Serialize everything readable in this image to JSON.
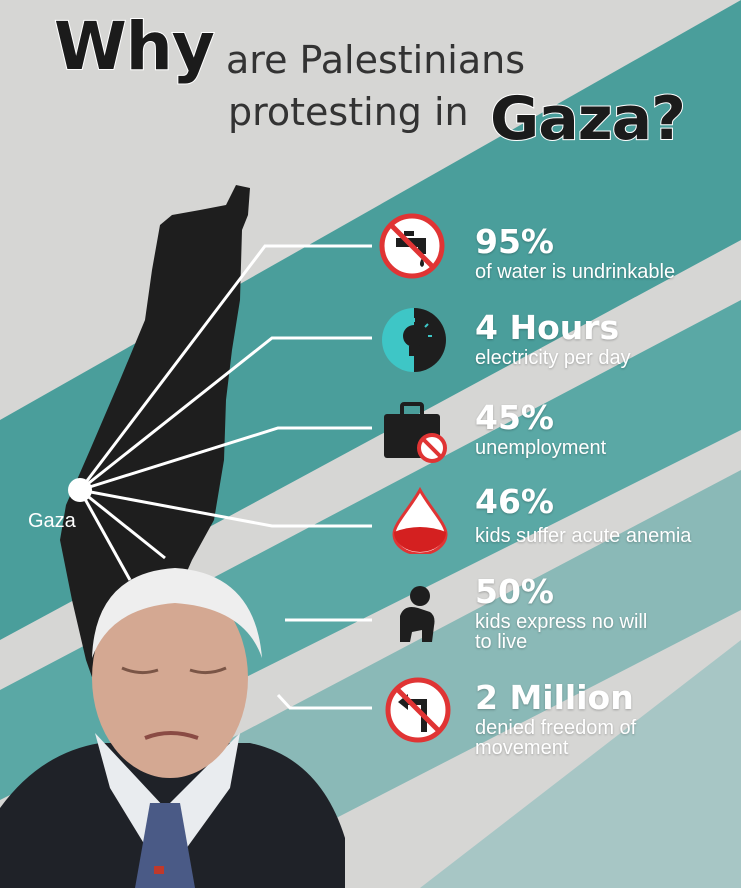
{
  "title": {
    "word_why": "Why",
    "line1": "are Palestinians",
    "line2": "protesting in",
    "word_gaza": "Gaza?"
  },
  "map": {
    "label": "Gaza"
  },
  "stats": [
    {
      "value": "95%",
      "description": "of water is undrinkable",
      "icon": "no-water-tap-icon"
    },
    {
      "value": "4 Hours",
      "description": "electricity per day",
      "icon": "lightbulb-icon"
    },
    {
      "value": "45%",
      "description": "unemployment",
      "icon": "briefcase-forbidden-icon"
    },
    {
      "value": "46%",
      "description": "kids suffer acute anemia",
      "icon": "blood-drop-icon"
    },
    {
      "value": "50%",
      "description": "kids express no will\nto live",
      "icon": "sad-child-icon"
    },
    {
      "value": "2 Million",
      "description": "denied freedom of\nmovement",
      "icon": "no-turn-icon"
    }
  ],
  "colors": {
    "teal": "#4a9e9b",
    "teal_light": "#7fb6b3",
    "gray": "#cfcfcd",
    "dark": "#1e1e1e",
    "red": "#e03434",
    "cyan": "#3ec6c6"
  }
}
